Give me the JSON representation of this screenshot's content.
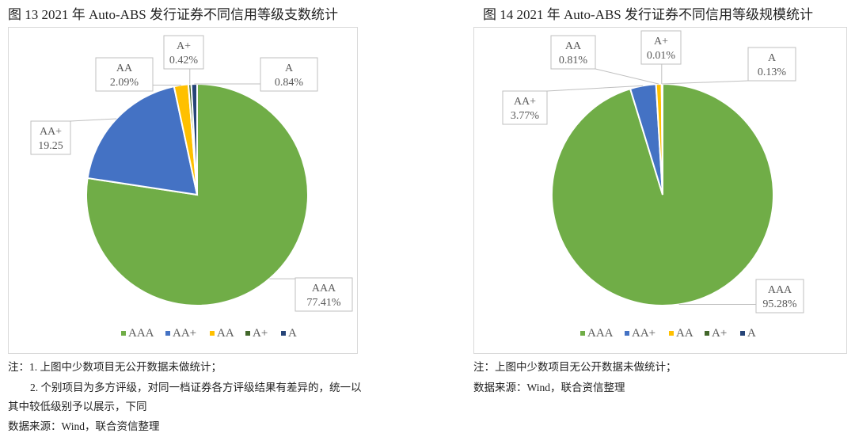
{
  "figures": [
    {
      "title": "图 13   2021 年 Auto-ABS 发行证券不同信用等级支数统计"
    },
    {
      "title": "图 14   2021 年 Auto-ABS 发行证券不同信用等级规模统计"
    }
  ],
  "notes_left": [
    "注：1. 上图中少数项目无公开数据未做统计；",
    "2. 个别项目为多方评级，对同一档证券各方评级结果有差异的，统一以",
    "其中较低级别予以展示，下同",
    "数据来源：Wind，联合资信整理"
  ],
  "notes_right": [
    "注：上图中少数项目无公开数据未做统计；",
    "数据来源：Wind，联合资信整理"
  ],
  "colors": {
    "AAA": "#70ad47",
    "AA+": "#4472c4",
    "AA": "#ffc000",
    "A+": "#43682b",
    "A": "#264478"
  },
  "chart_data": [
    {
      "type": "pie",
      "title": "图 13 2021 年 Auto-ABS 发行证券不同信用等级支数统计",
      "categories": [
        "AAA",
        "AA+",
        "AA",
        "A+",
        "A"
      ],
      "values": [
        77.41,
        19.25,
        2.09,
        0.42,
        0.84
      ],
      "labels": [
        "77.41%",
        "19.25",
        "2.09%",
        "0.42%",
        "0.84%"
      ],
      "legend_position": "bottom"
    },
    {
      "type": "pie",
      "title": "图 14 2021 年 Auto-ABS 发行证券不同信用等级规模统计",
      "categories": [
        "AAA",
        "AA+",
        "AA",
        "A+",
        "A"
      ],
      "values": [
        95.28,
        3.77,
        0.81,
        0.01,
        0.13
      ],
      "labels": [
        "95.28%",
        "3.77%",
        "0.81%",
        "0.01%",
        "0.13%"
      ],
      "legend_position": "bottom"
    }
  ]
}
